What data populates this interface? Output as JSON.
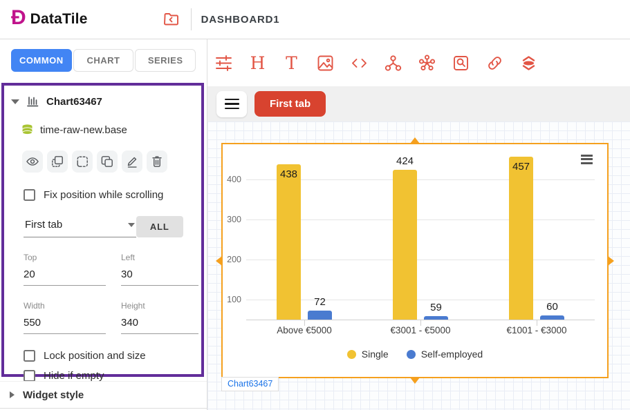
{
  "header": {
    "logo_text": "DataTile",
    "dashboard_title": "DASHBOARD1"
  },
  "sidebar": {
    "tabs": [
      {
        "label": "COMMON",
        "active": true
      },
      {
        "label": "CHART",
        "active": false
      },
      {
        "label": "SERIES",
        "active": false
      }
    ],
    "widget_panel": {
      "widget_title": "Chart63467",
      "datasource": "time-raw-new.base",
      "action_icons": [
        "visibility-icon",
        "select-widget-icon",
        "select-area-icon",
        "duplicate-icon",
        "edit-icon",
        "delete-icon"
      ],
      "fix_position_label": "Fix position while scrolling",
      "tab_select_value": "First tab",
      "all_button_label": "ALL",
      "fields": {
        "top": {
          "label": "Top",
          "value": "20"
        },
        "left": {
          "label": "Left",
          "value": "30"
        },
        "width": {
          "label": "Width",
          "value": "550"
        },
        "height": {
          "label": "Height",
          "value": "340"
        }
      },
      "lock_label": "Lock position and size",
      "hide_label": "Hide if empty"
    },
    "widget_style_label": "Widget style"
  },
  "toolbar": {
    "icons": [
      "tune-icon",
      "heading-icon",
      "text-icon",
      "image-icon",
      "code-icon",
      "nodes-icon",
      "cluster-icon",
      "search-box-icon",
      "link-icon",
      "layers-icon"
    ],
    "heading_letter": "H",
    "text_letter": "T"
  },
  "tabbar": {
    "active_tab_label": "First tab"
  },
  "canvas": {
    "widget_tag_label": "Chart63467"
  },
  "chart_data": {
    "type": "bar",
    "title": "",
    "categories": [
      "Above €5000",
      "€3001 - €5000",
      "€1001 - €3000"
    ],
    "series": [
      {
        "name": "Single",
        "color": "#F1C232",
        "values": [
          438,
          424,
          457
        ]
      },
      {
        "name": "Self-employed",
        "color": "#4A7BD0",
        "values": [
          72,
          59,
          60
        ]
      }
    ],
    "yticks": [
      100,
      200,
      300,
      400
    ],
    "ylim": [
      50,
      470
    ],
    "grid": true,
    "legend_position": "bottom-center",
    "data_labels": true
  },
  "colors": {
    "accent_blue": "#4285F4",
    "toolbar_red": "#E25545",
    "tab_button_red": "#D8432F",
    "selection_purple": "#622D9A",
    "widget_selection_orange": "#F5A01E",
    "logo_magenta": "#C0148C",
    "tag_link_blue": "#1A73E8"
  }
}
